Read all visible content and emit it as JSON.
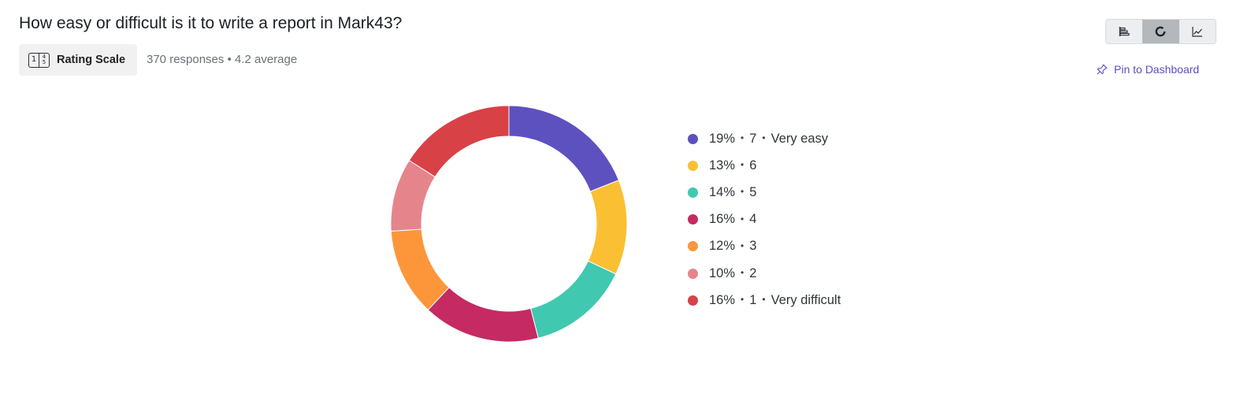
{
  "question": {
    "title": "How easy or difficult is it to write a report in Mark43?",
    "type_label": "Rating Scale",
    "type_icon": {
      "name": "rating-scale-icon",
      "glyphs": [
        "1",
        "4",
        "5"
      ]
    },
    "meta": "370 responses • 4.2 average"
  },
  "view_toggle": {
    "options": [
      {
        "name": "bar-chart-view",
        "icon": "horizontal-bars-icon",
        "active": false
      },
      {
        "name": "donut-chart-view",
        "icon": "donut-icon",
        "active": true
      },
      {
        "name": "line-chart-view",
        "icon": "line-chart-icon",
        "active": false
      }
    ]
  },
  "pin": {
    "label": "Pin to Dashboard",
    "icon": "pin-icon",
    "color": "#5a4fc0"
  },
  "chart_data": {
    "type": "pie",
    "variant": "donut",
    "legend_position": "right",
    "segments": [
      {
        "percent_label": "19%",
        "value": 19,
        "rating": "7",
        "label": "Very easy",
        "color": "#5d51c0"
      },
      {
        "percent_label": "13%",
        "value": 13,
        "rating": "6",
        "label": "",
        "color": "#fbbf33"
      },
      {
        "percent_label": "14%",
        "value": 14,
        "rating": "5",
        "label": "",
        "color": "#40c8b0"
      },
      {
        "percent_label": "16%",
        "value": 16,
        "rating": "4",
        "label": "",
        "color": "#c62a63"
      },
      {
        "percent_label": "12%",
        "value": 12,
        "rating": "3",
        "label": "",
        "color": "#fd963a"
      },
      {
        "percent_label": "10%",
        "value": 10,
        "rating": "2",
        "label": "",
        "color": "#e6848c"
      },
      {
        "percent_label": "16%",
        "value": 16,
        "rating": "1",
        "label": "Very difficult",
        "color": "#d84146"
      }
    ]
  }
}
